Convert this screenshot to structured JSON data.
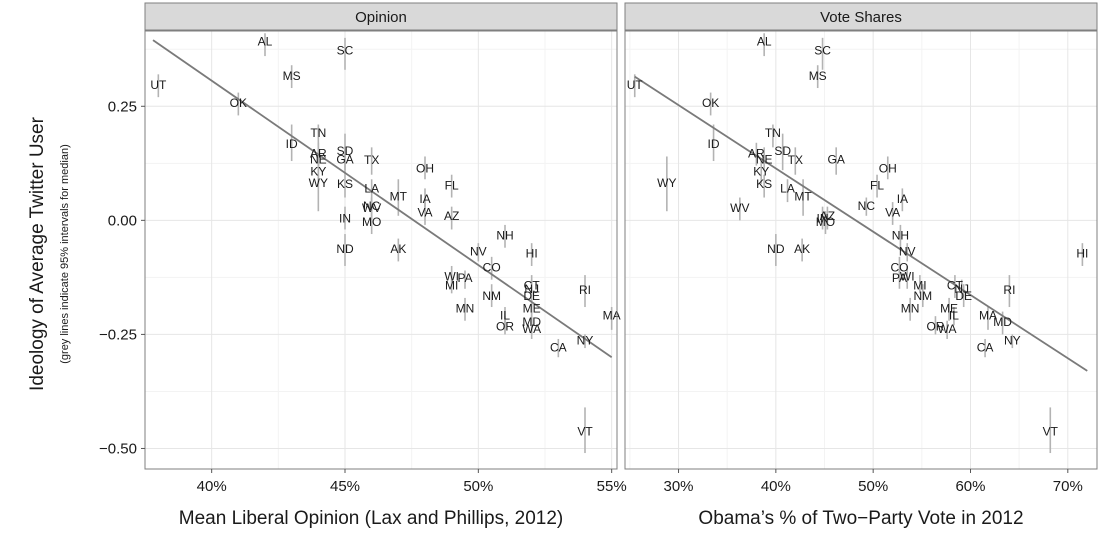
{
  "chart_data": [
    {
      "type": "scatter",
      "title": "Opinion",
      "xlabel": "Mean Liberal Opinion (Lax and Phillips, 2012)",
      "ylabel": "Ideology of Average Twitter User",
      "ylabel_note": "(grey lines indicate 95% intervals for median)",
      "xlim": [
        0.375,
        0.552
      ],
      "ylim": [
        -0.545,
        0.415
      ],
      "x_ticks": [
        {
          "v": 0.4,
          "label": "40%"
        },
        {
          "v": 0.45,
          "label": "45%"
        },
        {
          "v": 0.5,
          "label": "50%"
        },
        {
          "v": 0.55,
          "label": "55%"
        }
      ],
      "y_ticks": [
        {
          "v": 0.25,
          "label": "0.25"
        },
        {
          "v": 0.0,
          "label": "0.00"
        },
        {
          "v": -0.25,
          "label": "−0.25"
        },
        {
          "v": -0.5,
          "label": "−0.50"
        }
      ],
      "fit_line": [
        [
          0.378,
          0.395
        ],
        [
          0.55,
          -0.3
        ]
      ],
      "points": [
        {
          "label": "AL",
          "x": 0.42,
          "y": 0.39,
          "lo": 0.36,
          "hi": 0.41
        },
        {
          "label": "SC",
          "x": 0.45,
          "y": 0.37,
          "lo": 0.33,
          "hi": 0.4
        },
        {
          "label": "MS",
          "x": 0.43,
          "y": 0.315,
          "lo": 0.29,
          "hi": 0.34
        },
        {
          "label": "UT",
          "x": 0.38,
          "y": 0.295,
          "lo": 0.27,
          "hi": 0.32
        },
        {
          "label": "OK",
          "x": 0.41,
          "y": 0.255,
          "lo": 0.23,
          "hi": 0.28
        },
        {
          "label": "TN",
          "x": 0.44,
          "y": 0.19,
          "lo": 0.16,
          "hi": 0.21
        },
        {
          "label": "ID",
          "x": 0.43,
          "y": 0.165,
          "lo": 0.13,
          "hi": 0.21
        },
        {
          "label": "SD",
          "x": 0.45,
          "y": 0.15,
          "lo": 0.11,
          "hi": 0.19
        },
        {
          "label": "AR",
          "x": 0.44,
          "y": 0.145,
          "lo": 0.12,
          "hi": 0.17
        },
        {
          "label": "NE",
          "x": 0.44,
          "y": 0.132,
          "lo": 0.11,
          "hi": 0.16
        },
        {
          "label": "GA",
          "x": 0.45,
          "y": 0.132,
          "lo": 0.1,
          "hi": 0.16
        },
        {
          "label": "TX",
          "x": 0.46,
          "y": 0.13,
          "lo": 0.1,
          "hi": 0.16
        },
        {
          "label": "OH",
          "x": 0.48,
          "y": 0.112,
          "lo": 0.09,
          "hi": 0.14
        },
        {
          "label": "KY",
          "x": 0.44,
          "y": 0.105,
          "lo": 0.08,
          "hi": 0.13
        },
        {
          "label": "WY",
          "x": 0.44,
          "y": 0.08,
          "lo": 0.02,
          "hi": 0.14
        },
        {
          "label": "KS",
          "x": 0.45,
          "y": 0.078,
          "lo": 0.05,
          "hi": 0.1
        },
        {
          "label": "FL",
          "x": 0.49,
          "y": 0.075,
          "lo": 0.05,
          "hi": 0.1
        },
        {
          "label": "LA",
          "x": 0.46,
          "y": 0.068,
          "lo": 0.04,
          "hi": 0.09
        },
        {
          "label": "MT",
          "x": 0.47,
          "y": 0.05,
          "lo": 0.01,
          "hi": 0.09
        },
        {
          "label": "IA",
          "x": 0.48,
          "y": 0.045,
          "lo": 0.02,
          "hi": 0.07
        },
        {
          "label": "NC",
          "x": 0.46,
          "y": 0.03,
          "lo": 0.01,
          "hi": 0.05
        },
        {
          "label": "WV",
          "x": 0.46,
          "y": 0.025,
          "lo": 0.0,
          "hi": 0.05
        },
        {
          "label": "VA",
          "x": 0.48,
          "y": 0.015,
          "lo": -0.01,
          "hi": 0.04
        },
        {
          "label": "AZ",
          "x": 0.49,
          "y": 0.008,
          "lo": -0.02,
          "hi": 0.03
        },
        {
          "label": "IN",
          "x": 0.45,
          "y": 0.002,
          "lo": -0.02,
          "hi": 0.03
        },
        {
          "label": "MO",
          "x": 0.46,
          "y": -0.005,
          "lo": -0.03,
          "hi": 0.02
        },
        {
          "label": "NH",
          "x": 0.51,
          "y": -0.035,
          "lo": -0.06,
          "hi": -0.01
        },
        {
          "label": "ND",
          "x": 0.45,
          "y": -0.065,
          "lo": -0.1,
          "hi": -0.03
        },
        {
          "label": "AK",
          "x": 0.47,
          "y": -0.065,
          "lo": -0.09,
          "hi": -0.04
        },
        {
          "label": "NV",
          "x": 0.5,
          "y": -0.07,
          "lo": -0.09,
          "hi": -0.05
        },
        {
          "label": "HI",
          "x": 0.52,
          "y": -0.075,
          "lo": -0.1,
          "hi": -0.05
        },
        {
          "label": "CO",
          "x": 0.505,
          "y": -0.105,
          "lo": -0.13,
          "hi": -0.08
        },
        {
          "label": "WI",
          "x": 0.49,
          "y": -0.125,
          "lo": -0.15,
          "hi": -0.1
        },
        {
          "label": "PA",
          "x": 0.495,
          "y": -0.128,
          "lo": -0.15,
          "hi": -0.11
        },
        {
          "label": "MI",
          "x": 0.49,
          "y": -0.145,
          "lo": -0.16,
          "hi": -0.12
        },
        {
          "label": "CT",
          "x": 0.52,
          "y": -0.145,
          "lo": -0.17,
          "hi": -0.12
        },
        {
          "label": "NJ",
          "x": 0.52,
          "y": -0.152,
          "lo": -0.17,
          "hi": -0.13
        },
        {
          "label": "RI",
          "x": 0.54,
          "y": -0.155,
          "lo": -0.19,
          "hi": -0.12
        },
        {
          "label": "NM",
          "x": 0.505,
          "y": -0.168,
          "lo": -0.19,
          "hi": -0.14
        },
        {
          "label": "DE",
          "x": 0.52,
          "y": -0.168,
          "lo": -0.19,
          "hi": -0.14
        },
        {
          "label": "MN",
          "x": 0.495,
          "y": -0.195,
          "lo": -0.22,
          "hi": -0.17
        },
        {
          "label": "ME",
          "x": 0.52,
          "y": -0.195,
          "lo": -0.22,
          "hi": -0.17
        },
        {
          "label": "MA",
          "x": 0.55,
          "y": -0.21,
          "lo": -0.24,
          "hi": -0.19
        },
        {
          "label": "IL",
          "x": 0.51,
          "y": -0.21,
          "lo": -0.23,
          "hi": -0.19
        },
        {
          "label": "MD",
          "x": 0.52,
          "y": -0.225,
          "lo": -0.25,
          "hi": -0.2
        },
        {
          "label": "OR",
          "x": 0.51,
          "y": -0.235,
          "lo": -0.25,
          "hi": -0.21
        },
        {
          "label": "WA",
          "x": 0.52,
          "y": -0.24,
          "lo": -0.26,
          "hi": -0.22
        },
        {
          "label": "NY",
          "x": 0.54,
          "y": -0.265,
          "lo": -0.28,
          "hi": -0.25
        },
        {
          "label": "CA",
          "x": 0.53,
          "y": -0.28,
          "lo": -0.3,
          "hi": -0.26
        },
        {
          "label": "VT",
          "x": 0.54,
          "y": -0.465,
          "lo": -0.51,
          "hi": -0.41
        }
      ]
    },
    {
      "type": "scatter",
      "title": "Vote Shares",
      "xlabel": "Obama’s % of Two−Party Vote in 2012",
      "xlim": [
        0.245,
        0.73
      ],
      "ylim": [
        -0.545,
        0.415
      ],
      "x_ticks": [
        {
          "v": 0.3,
          "label": "30%"
        },
        {
          "v": 0.4,
          "label": "40%"
        },
        {
          "v": 0.5,
          "label": "50%"
        },
        {
          "v": 0.6,
          "label": "60%"
        },
        {
          "v": 0.7,
          "label": "70%"
        }
      ],
      "y_ticks": [
        {
          "v": 0.25,
          "label": "0.25"
        },
        {
          "v": 0.0,
          "label": "0.00"
        },
        {
          "v": -0.25,
          "label": "−0.25"
        },
        {
          "v": -0.5,
          "label": "−0.50"
        }
      ],
      "fit_line": [
        [
          0.255,
          0.315
        ],
        [
          0.72,
          -0.33
        ]
      ],
      "points": [
        {
          "label": "AL",
          "x": 0.388,
          "y": 0.39,
          "lo": 0.36,
          "hi": 0.41
        },
        {
          "label": "SC",
          "x": 0.448,
          "y": 0.37,
          "lo": 0.33,
          "hi": 0.4
        },
        {
          "label": "MS",
          "x": 0.443,
          "y": 0.315,
          "lo": 0.29,
          "hi": 0.34
        },
        {
          "label": "UT",
          "x": 0.255,
          "y": 0.295,
          "lo": 0.27,
          "hi": 0.32
        },
        {
          "label": "OK",
          "x": 0.333,
          "y": 0.255,
          "lo": 0.23,
          "hi": 0.28
        },
        {
          "label": "TN",
          "x": 0.397,
          "y": 0.19,
          "lo": 0.16,
          "hi": 0.21
        },
        {
          "label": "ID",
          "x": 0.336,
          "y": 0.165,
          "lo": 0.13,
          "hi": 0.21
        },
        {
          "label": "SD",
          "x": 0.407,
          "y": 0.15,
          "lo": 0.11,
          "hi": 0.19
        },
        {
          "label": "AR",
          "x": 0.38,
          "y": 0.145,
          "lo": 0.12,
          "hi": 0.17
        },
        {
          "label": "NE",
          "x": 0.388,
          "y": 0.132,
          "lo": 0.11,
          "hi": 0.16
        },
        {
          "label": "TX",
          "x": 0.42,
          "y": 0.13,
          "lo": 0.1,
          "hi": 0.16
        },
        {
          "label": "GA",
          "x": 0.462,
          "y": 0.132,
          "lo": 0.1,
          "hi": 0.16
        },
        {
          "label": "OH",
          "x": 0.515,
          "y": 0.112,
          "lo": 0.09,
          "hi": 0.14
        },
        {
          "label": "KY",
          "x": 0.385,
          "y": 0.105,
          "lo": 0.08,
          "hi": 0.13
        },
        {
          "label": "WY",
          "x": 0.288,
          "y": 0.08,
          "lo": 0.02,
          "hi": 0.14
        },
        {
          "label": "KS",
          "x": 0.388,
          "y": 0.078,
          "lo": 0.05,
          "hi": 0.1
        },
        {
          "label": "FL",
          "x": 0.504,
          "y": 0.075,
          "lo": 0.05,
          "hi": 0.1
        },
        {
          "label": "LA",
          "x": 0.412,
          "y": 0.068,
          "lo": 0.04,
          "hi": 0.09
        },
        {
          "label": "MT",
          "x": 0.428,
          "y": 0.05,
          "lo": 0.01,
          "hi": 0.09
        },
        {
          "label": "IA",
          "x": 0.53,
          "y": 0.045,
          "lo": 0.02,
          "hi": 0.07
        },
        {
          "label": "NC",
          "x": 0.493,
          "y": 0.03,
          "lo": 0.01,
          "hi": 0.05
        },
        {
          "label": "WV",
          "x": 0.363,
          "y": 0.025,
          "lo": 0.0,
          "hi": 0.05
        },
        {
          "label": "VA",
          "x": 0.52,
          "y": 0.015,
          "lo": -0.01,
          "hi": 0.04
        },
        {
          "label": "AZ",
          "x": 0.453,
          "y": 0.008,
          "lo": -0.02,
          "hi": 0.03
        },
        {
          "label": "IN",
          "x": 0.448,
          "y": 0.002,
          "lo": -0.02,
          "hi": 0.03
        },
        {
          "label": "MO",
          "x": 0.451,
          "y": -0.005,
          "lo": -0.03,
          "hi": 0.02
        },
        {
          "label": "NH",
          "x": 0.528,
          "y": -0.035,
          "lo": -0.06,
          "hi": -0.01
        },
        {
          "label": "ND",
          "x": 0.4,
          "y": -0.065,
          "lo": -0.1,
          "hi": -0.03
        },
        {
          "label": "AK",
          "x": 0.427,
          "y": -0.065,
          "lo": -0.09,
          "hi": -0.04
        },
        {
          "label": "NV",
          "x": 0.535,
          "y": -0.07,
          "lo": -0.09,
          "hi": -0.05
        },
        {
          "label": "HI",
          "x": 0.715,
          "y": -0.075,
          "lo": -0.1,
          "hi": -0.05
        },
        {
          "label": "CO",
          "x": 0.527,
          "y": -0.105,
          "lo": -0.13,
          "hi": -0.08
        },
        {
          "label": "WI",
          "x": 0.535,
          "y": -0.125,
          "lo": -0.15,
          "hi": -0.1
        },
        {
          "label": "PA",
          "x": 0.527,
          "y": -0.128,
          "lo": -0.15,
          "hi": -0.11
        },
        {
          "label": "MI",
          "x": 0.548,
          "y": -0.145,
          "lo": -0.16,
          "hi": -0.12
        },
        {
          "label": "CT",
          "x": 0.584,
          "y": -0.145,
          "lo": -0.17,
          "hi": -0.12
        },
        {
          "label": "NJ",
          "x": 0.591,
          "y": -0.152,
          "lo": -0.17,
          "hi": -0.13
        },
        {
          "label": "RI",
          "x": 0.64,
          "y": -0.155,
          "lo": -0.19,
          "hi": -0.12
        },
        {
          "label": "DE",
          "x": 0.593,
          "y": -0.168,
          "lo": -0.19,
          "hi": -0.14
        },
        {
          "label": "NM",
          "x": 0.551,
          "y": -0.168,
          "lo": -0.19,
          "hi": -0.14
        },
        {
          "label": "ME",
          "x": 0.578,
          "y": -0.195,
          "lo": -0.22,
          "hi": -0.17
        },
        {
          "label": "MN",
          "x": 0.538,
          "y": -0.195,
          "lo": -0.22,
          "hi": -0.17
        },
        {
          "label": "MA",
          "x": 0.618,
          "y": -0.21,
          "lo": -0.24,
          "hi": -0.19
        },
        {
          "label": "IL",
          "x": 0.583,
          "y": -0.21,
          "lo": -0.23,
          "hi": -0.19
        },
        {
          "label": "MD",
          "x": 0.633,
          "y": -0.225,
          "lo": -0.25,
          "hi": -0.2
        },
        {
          "label": "OR",
          "x": 0.564,
          "y": -0.235,
          "lo": -0.25,
          "hi": -0.21
        },
        {
          "label": "WA",
          "x": 0.576,
          "y": -0.24,
          "lo": -0.26,
          "hi": -0.22
        },
        {
          "label": "NY",
          "x": 0.643,
          "y": -0.265,
          "lo": -0.28,
          "hi": -0.25
        },
        {
          "label": "CA",
          "x": 0.615,
          "y": -0.28,
          "lo": -0.3,
          "hi": -0.26
        },
        {
          "label": "VT",
          "x": 0.682,
          "y": -0.465,
          "lo": -0.51,
          "hi": -0.41
        }
      ]
    }
  ]
}
